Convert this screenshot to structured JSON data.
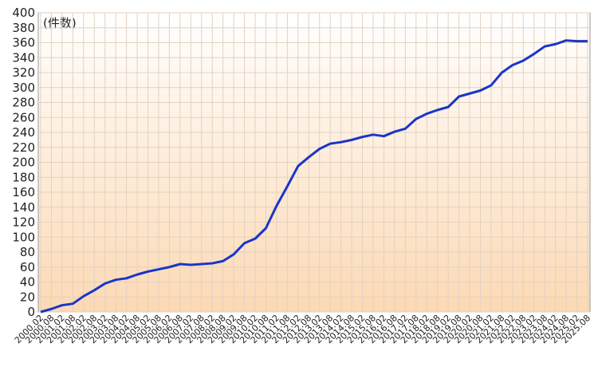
{
  "chart_data": {
    "type": "line",
    "annotation": "(件数)",
    "categories": [
      "2000.02",
      "2000.08",
      "2001.02",
      "2001.08",
      "2002.02",
      "2002.08",
      "2003.02",
      "2003.08",
      "2004.02",
      "2004.08",
      "2005.02",
      "2005.08",
      "2006.02",
      "2006.08",
      "2007.02",
      "2007.08",
      "2008.02",
      "2008.08",
      "2009.02",
      "2009.08",
      "2010.02",
      "2010.08",
      "2011.02",
      "2011.08",
      "2012.02",
      "2012.08",
      "2013.02",
      "2013.08",
      "2014.02",
      "2014.08",
      "2015.02",
      "2015.08",
      "2016.02",
      "2016.08",
      "2017.02",
      "2017.08",
      "2018.02",
      "2018.08",
      "2019.02",
      "2019.08",
      "2020.02",
      "2020.08",
      "2021.02",
      "2021.08",
      "2022.02",
      "2022.08",
      "2023.02",
      "2023.08",
      "2024.02",
      "2024.08",
      "2025.02",
      "2025.08"
    ],
    "values": [
      0,
      4,
      9,
      11,
      21,
      29,
      38,
      43,
      45,
      50,
      54,
      57,
      60,
      64,
      63,
      64,
      65,
      68,
      77,
      92,
      98,
      112,
      142,
      168,
      195,
      207,
      218,
      225,
      227,
      230,
      234,
      237,
      235,
      241,
      245,
      258,
      265,
      270,
      274,
      288,
      292,
      296,
      303,
      320,
      330,
      336,
      345,
      355,
      358,
      363,
      362,
      362
    ],
    "color": "#1a35c8",
    "ylim": [
      0,
      400
    ],
    "yticks": [
      0,
      20,
      40,
      60,
      80,
      100,
      120,
      140,
      160,
      180,
      200,
      220,
      240,
      260,
      280,
      300,
      320,
      340,
      360,
      380,
      400
    ],
    "grid": true
  }
}
